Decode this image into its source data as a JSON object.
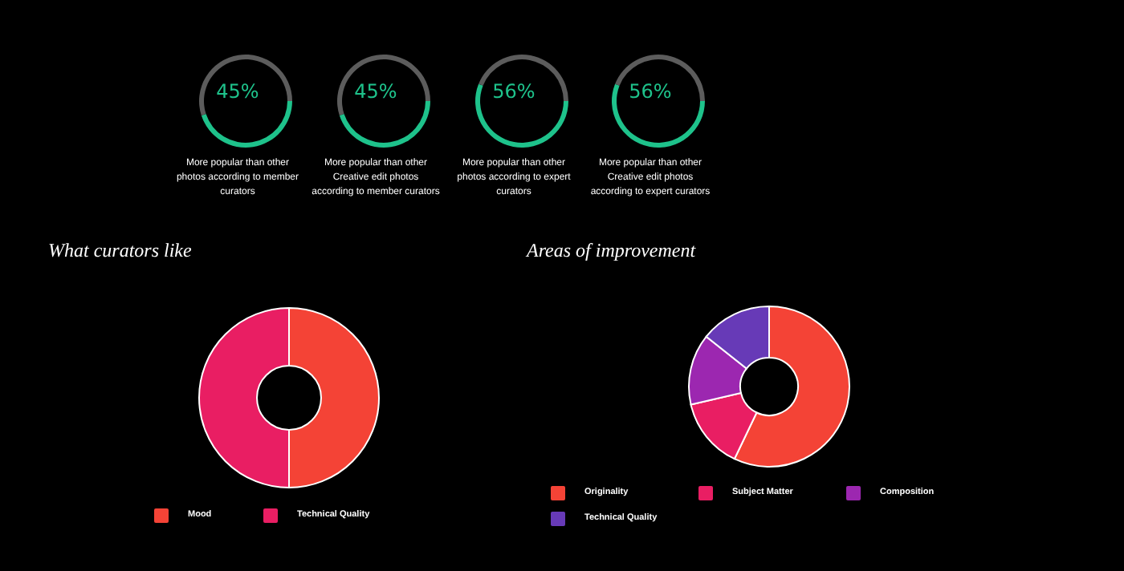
{
  "chart_data": [
    {
      "type": "donut",
      "title": "More popular than other photos according to member curators",
      "categories": [
        null,
        null
      ],
      "values": [
        45,
        55
      ],
      "colors": [
        "#1ec28b",
        "#5c5c5c"
      ],
      "annotations": [
        "45%"
      ]
    },
    {
      "type": "donut",
      "title": "More popular than other Creative edit photos according to member curators",
      "categories": [
        null,
        null
      ],
      "values": [
        45,
        55
      ],
      "colors": [
        "#1ec28b",
        "#5c5c5c"
      ],
      "annotations": [
        "45%"
      ]
    },
    {
      "type": "donut",
      "title": "More popular than other photos according to expert curators",
      "categories": [
        null,
        null
      ],
      "values": [
        56,
        44
      ],
      "colors": [
        "#1ec28b",
        "#5c5c5c"
      ],
      "annotations": [
        "56%"
      ]
    },
    {
      "type": "donut",
      "title": "More popular than other Creative edit photos according to expert curators",
      "categories": [
        null,
        null
      ],
      "values": [
        56,
        44
      ],
      "colors": [
        "#1ec28b",
        "#5c5c5c"
      ],
      "annotations": [
        "56%"
      ]
    },
    {
      "type": "donut",
      "title": "What curators like",
      "categories": [
        "Mood",
        "Technical Quality"
      ],
      "values": [
        50,
        50
      ],
      "colors": [
        "#f44336",
        "#e91e63"
      ],
      "legend": "bottom"
    },
    {
      "type": "donut",
      "title": "Areas of improvement",
      "categories": [
        "Originality",
        "Subject Matter",
        "Composition",
        "Technical Quality"
      ],
      "values": [
        57.1,
        14.3,
        14.3,
        14.3
      ],
      "colors": [
        "#f44336",
        "#e91e63",
        "#9c27b0",
        "#673ab7"
      ],
      "legend": "bottom"
    }
  ]
}
